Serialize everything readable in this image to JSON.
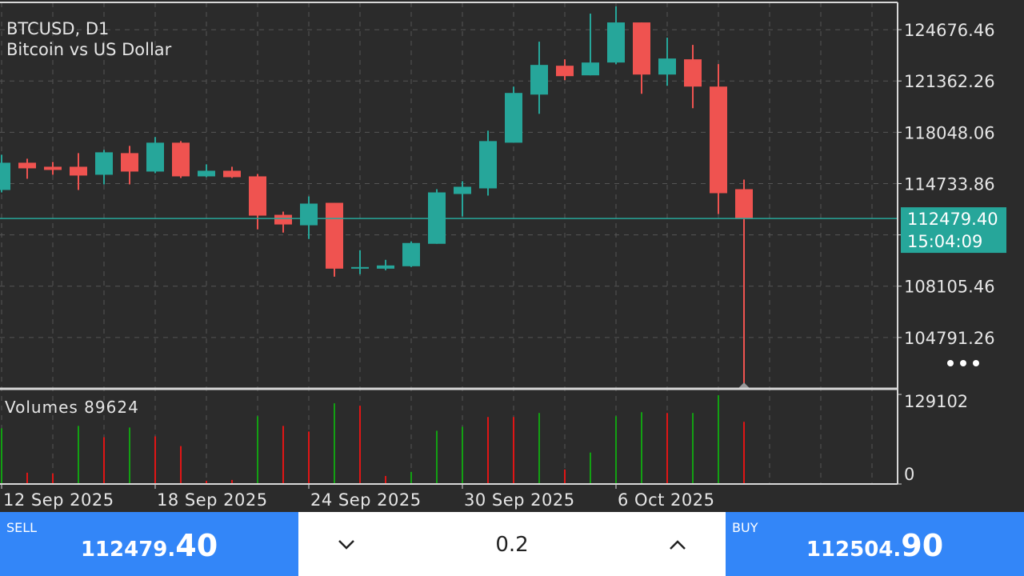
{
  "chart_data": {
    "type": "candlestick",
    "title": "BTCUSD, D1",
    "subtitle": "Bitcoin vs US Dollar",
    "categories": [
      "12 Sep 2025",
      null,
      null,
      null,
      null,
      null,
      "18 Sep 2025",
      null,
      null,
      null,
      null,
      null,
      "24 Sep 2025",
      null,
      null,
      null,
      null,
      null,
      "30 Sep 2025",
      null,
      null,
      null,
      null,
      null,
      "6 Oct 2025",
      null,
      null,
      null,
      null,
      null
    ],
    "open": [
      114320,
      116080,
      115821,
      115821,
      115303,
      116701,
      115510,
      117375,
      115200,
      115562,
      115200,
      112715,
      112040,
      113491,
      109238,
      109238,
      109394,
      110843,
      114061,
      114423,
      117375,
      120482,
      122346,
      121725,
      122553,
      125142,
      121776,
      122760,
      120999,
      114372
    ],
    "high": [
      116598,
      116339,
      116132,
      116701,
      116909,
      117168,
      117737,
      117478,
      115977,
      115821,
      115355,
      112922,
      113906,
      113491,
      110429,
      109808,
      110999,
      114372,
      114889,
      118151,
      120999,
      123900,
      122760,
      125712,
      126178,
      125142,
      124159,
      123692,
      122450,
      114993
    ],
    "low": [
      114164,
      115045,
      115303,
      114320,
      114682,
      114682,
      115407,
      115096,
      115148,
      115096,
      111775,
      111568,
      111154,
      108721,
      108876,
      109135,
      109342,
      110843,
      112611,
      113958,
      117375,
      119239,
      121414,
      121725,
      122450,
      120534,
      121051,
      119602,
      112767,
      101677
    ],
    "close": [
      116080,
      115718,
      115614,
      115252,
      116753,
      115510,
      117375,
      115200,
      115562,
      115148,
      112663,
      112092,
      113440,
      109238,
      109342,
      109445,
      110895,
      114164,
      114527,
      117478,
      120586,
      122398,
      121673,
      122553,
      125142,
      121776,
      122812,
      120999,
      114113,
      112479.4
    ],
    "ylim": [
      101477,
      126437
    ],
    "yticks": [
      104791.26,
      108105.46,
      111419.66,
      114733.86,
      118048.06,
      121362.26,
      124676.46
    ],
    "grid": true,
    "up_color": "#26a69a",
    "down_color": "#ef5350",
    "current_price": 112479.4,
    "current_price_label": "112479.40",
    "countdown": "15:04:09",
    "volume_title": "Volumes",
    "volume": [
      80253,
      16283,
      15120,
      83742,
      67459,
      81415,
      68622,
      54665,
      4652,
      5815,
      97699,
      83742,
      75600,
      116308,
      112818,
      11631,
      17446,
      76763,
      82579,
      96535,
      96535,
      102351,
      20936,
      45360,
      97699,
      103514,
      102351,
      102351,
      127939,
      89624
    ],
    "volume_colors": [
      "#12a012",
      "#e01515",
      "#e01515",
      "#12a012",
      "#e01515",
      "#12a012",
      "#e01515",
      "#e01515",
      "#e01515",
      "#e01515",
      "#12a012",
      "#e01515",
      "#e01515",
      "#12a012",
      "#e01515",
      "#e01515",
      "#12a012",
      "#12a012",
      "#12a012",
      "#e01515",
      "#e01515",
      "#12a012",
      "#e01515",
      "#12a012",
      "#12a012",
      "#12a012",
      "#e01515",
      "#12a012",
      "#12a012",
      "#e01515"
    ],
    "volume_ylim": [
      0,
      134917
    ],
    "volume_yticks": [
      0,
      129102
    ]
  },
  "trade": {
    "sell_label": "SELL",
    "sell_price_main": "112479.",
    "sell_price_big": "40",
    "lot": "0.2",
    "buy_label": "BUY",
    "buy_price_main": "112504.",
    "buy_price_big": "90"
  }
}
